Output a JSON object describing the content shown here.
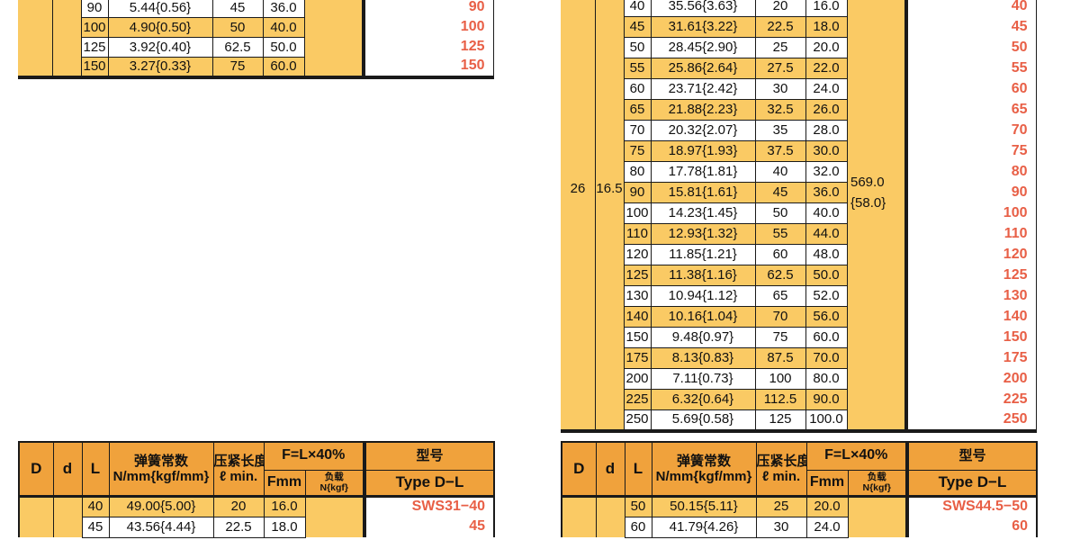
{
  "colors": {
    "row_yellow": "#FACA64",
    "header_orange": "#F0A23C",
    "accent_text": "#E85F46",
    "line_black": "#1A1A1A"
  },
  "header_labels": {
    "D": "D",
    "d": "d",
    "L": "L",
    "spring_zh": "弹簧常数",
    "spring_unit": "N/mm{kgf/mm}",
    "press_zh": "压紧长度",
    "press_unit": "ℓ min.",
    "formula": "F=L×40%",
    "fmm": "Fmm",
    "load_zh": "负载",
    "load_unit": "N{kgf}",
    "model_zh": "型号",
    "model_en": "Type D−L"
  },
  "tables": {
    "top_left": {
      "rows": [
        {
          "l": "90",
          "k": "5.44{0.56}",
          "lmin": "45",
          "f": "36.0",
          "type": "90"
        },
        {
          "l": "100",
          "k": "4.90{0.50}",
          "lmin": "50",
          "f": "40.0",
          "type": "100"
        },
        {
          "l": "125",
          "k": "3.92{0.40}",
          "lmin": "62.5",
          "f": "50.0",
          "type": "125"
        },
        {
          "l": "150",
          "k": "3.27{0.33}",
          "lmin": "75",
          "f": "60.0",
          "type": "150"
        }
      ]
    },
    "top_right": {
      "D": "26",
      "d": "16.5",
      "load_value": "569.0",
      "load_value2": "{58.0}",
      "rows": [
        {
          "l": "40",
          "k": "35.56{3.63}",
          "lmin": "20",
          "f": "16.0",
          "type": "40"
        },
        {
          "l": "45",
          "k": "31.61{3.22}",
          "lmin": "22.5",
          "f": "18.0",
          "type": "45"
        },
        {
          "l": "50",
          "k": "28.45{2.90}",
          "lmin": "25",
          "f": "20.0",
          "type": "50"
        },
        {
          "l": "55",
          "k": "25.86{2.64}",
          "lmin": "27.5",
          "f": "22.0",
          "type": "55"
        },
        {
          "l": "60",
          "k": "23.71{2.42}",
          "lmin": "30",
          "f": "24.0",
          "type": "60"
        },
        {
          "l": "65",
          "k": "21.88{2.23}",
          "lmin": "32.5",
          "f": "26.0",
          "type": "65"
        },
        {
          "l": "70",
          "k": "20.32{2.07}",
          "lmin": "35",
          "f": "28.0",
          "type": "70"
        },
        {
          "l": "75",
          "k": "18.97{1.93}",
          "lmin": "37.5",
          "f": "30.0",
          "type": "75"
        },
        {
          "l": "80",
          "k": "17.78{1.81}",
          "lmin": "40",
          "f": "32.0",
          "type": "80"
        },
        {
          "l": "90",
          "k": "15.81{1.61}",
          "lmin": "45",
          "f": "36.0",
          "type": "90"
        },
        {
          "l": "100",
          "k": "14.23{1.45}",
          "lmin": "50",
          "f": "40.0",
          "type": "100"
        },
        {
          "l": "110",
          "k": "12.93{1.32}",
          "lmin": "55",
          "f": "44.0",
          "type": "110"
        },
        {
          "l": "120",
          "k": "11.85{1.21}",
          "lmin": "60",
          "f": "48.0",
          "type": "120"
        },
        {
          "l": "125",
          "k": "11.38{1.16}",
          "lmin": "62.5",
          "f": "50.0",
          "type": "125"
        },
        {
          "l": "130",
          "k": "10.94{1.12}",
          "lmin": "65",
          "f": "52.0",
          "type": "130"
        },
        {
          "l": "140",
          "k": "10.16{1.04}",
          "lmin": "70",
          "f": "56.0",
          "type": "140"
        },
        {
          "l": "150",
          "k": "9.48{0.97}",
          "lmin": "75",
          "f": "60.0",
          "type": "150"
        },
        {
          "l": "175",
          "k": "8.13{0.83}",
          "lmin": "87.5",
          "f": "70.0",
          "type": "175"
        },
        {
          "l": "200",
          "k": "7.11{0.73}",
          "lmin": "100",
          "f": "80.0",
          "type": "200"
        },
        {
          "l": "225",
          "k": "6.32{0.64}",
          "lmin": "112.5",
          "f": "90.0",
          "type": "225"
        },
        {
          "l": "250",
          "k": "5.69{0.58}",
          "lmin": "125",
          "f": "100.0",
          "type": "250"
        }
      ]
    },
    "bottom_left": {
      "rows": [
        {
          "l": "40",
          "k": "49.00{5.00}",
          "lmin": "20",
          "f": "16.0",
          "type": "SWS31−40"
        },
        {
          "l": "45",
          "k": "43.56{4.44}",
          "lmin": "22.5",
          "f": "18.0",
          "type": "45"
        }
      ]
    },
    "bottom_right": {
      "rows": [
        {
          "l": "50",
          "k": "50.15{5.11}",
          "lmin": "25",
          "f": "20.0",
          "type": "SWS44.5−50"
        },
        {
          "l": "60",
          "k": "41.79{4.26}",
          "lmin": "30",
          "f": "24.0",
          "type": "60"
        }
      ]
    }
  }
}
